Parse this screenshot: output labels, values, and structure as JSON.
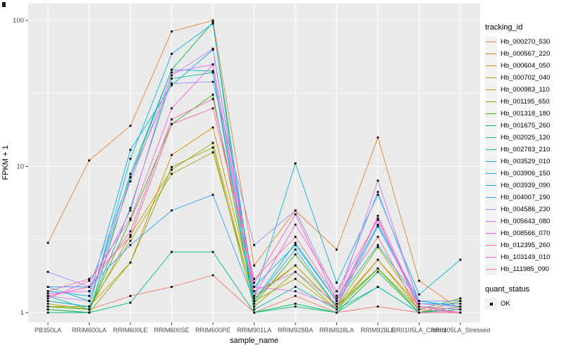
{
  "figure": {
    "panel_background": "#EBEBEB",
    "grid_color": "#FFFFFF",
    "tick_mark_color": "#333333",
    "tick_label_color": "#4D4D4D",
    "point_color": "#000000",
    "legend_key_background": "#F2F2F2"
  },
  "chart_data": {
    "type": "line",
    "xlabel": "sample_name",
    "ylabel": "FPKM + 1",
    "y_scale": "log10",
    "y_ticks": [
      1,
      10,
      100
    ],
    "y_minor_ticks": [
      3.162,
      31.623
    ],
    "ylim": [
      0.86,
      130
    ],
    "grid": true,
    "legend_position": "right",
    "legend_title": "tracking_id",
    "quant_legend": {
      "title": "quant_status",
      "items": [
        {
          "label": "OK"
        }
      ]
    },
    "categories": [
      "PB350LA",
      "RRIM600LA",
      "RRIM600LE",
      "RRIM600SE",
      "RRIM600PE",
      "RRIM901LA",
      "RRIM928BA",
      "RRIM928LA",
      "RRIM928LE",
      "RRII105LA_Control",
      "RRII105LA_Stressed"
    ],
    "series": [
      {
        "name": "Hb_000270_530",
        "color": "#F8766D",
        "values": [
          1.1,
          1.05,
          1.3,
          1.5,
          1.8,
          1.0,
          1.3,
          1.0,
          1.1,
          1.0,
          1.0
        ]
      },
      {
        "name": "Hb_000567_220",
        "color": "#EA8331",
        "values": [
          3.0,
          11.0,
          19.0,
          84.0,
          100.0,
          2.1,
          5.0,
          2.7,
          15.8,
          1.65,
          1.05
        ]
      },
      {
        "name": "Hb_000604_050",
        "color": "#D89000",
        "values": [
          1.2,
          1.1,
          2.2,
          12.0,
          18.5,
          1.3,
          2.1,
          1.1,
          2.3,
          1.1,
          1.0
        ]
      },
      {
        "name": "Hb_000702_040",
        "color": "#C09B00",
        "values": [
          1.15,
          1.05,
          3.4,
          9.5,
          14.5,
          1.2,
          1.7,
          1.05,
          2.3,
          1.05,
          1.0
        ]
      },
      {
        "name": "Hb_000983_110",
        "color": "#A3A500",
        "values": [
          1.1,
          1.1,
          3.1,
          8.9,
          12.5,
          1.25,
          2.1,
          1.1,
          2.8,
          1.1,
          1.05
        ]
      },
      {
        "name": "Hb_001195_650",
        "color": "#7CAE00",
        "values": [
          1.05,
          1.0,
          2.2,
          9.9,
          13.5,
          1.1,
          1.9,
          1.05,
          2.0,
          1.0,
          1.2
        ]
      },
      {
        "name": "Hb_001318_180",
        "color": "#39B600",
        "values": [
          1.1,
          1.05,
          4.3,
          19.5,
          31.0,
          1.15,
          2.5,
          1.1,
          2.0,
          1.05,
          1.25
        ]
      },
      {
        "name": "Hb_001675_260",
        "color": "#00BB4E",
        "values": [
          1.05,
          1.0,
          8.4,
          46.0,
          97.0,
          1.0,
          1.15,
          1.0,
          1.9,
          1.0,
          1.1
        ]
      },
      {
        "name": "Hb_002025_120",
        "color": "#00BF7D",
        "values": [
          1.0,
          1.0,
          1.17,
          2.6,
          2.6,
          1.0,
          1.1,
          1.0,
          1.5,
          1.0,
          1.05
        ]
      },
      {
        "name": "Hb_002783_210",
        "color": "#00C1A3",
        "values": [
          1.3,
          1.05,
          5.2,
          40.0,
          44.0,
          1.05,
          1.5,
          1.05,
          1.5,
          1.0,
          1.0
        ]
      },
      {
        "name": "Hb_003529_010",
        "color": "#00BFC4",
        "values": [
          1.5,
          1.2,
          8.9,
          46.0,
          45.0,
          1.2,
          3.0,
          1.2,
          2.9,
          1.2,
          1.1
        ]
      },
      {
        "name": "Hb_003906_150",
        "color": "#00BAE0",
        "values": [
          1.2,
          1.1,
          11.3,
          59.0,
          95.0,
          1.3,
          10.5,
          1.6,
          6.4,
          1.33,
          2.3
        ]
      },
      {
        "name": "Hb_003939_090",
        "color": "#00B0F6",
        "values": [
          1.4,
          1.3,
          13.0,
          36.0,
          63.0,
          1.5,
          2.9,
          1.2,
          4.0,
          1.2,
          1.1
        ]
      },
      {
        "name": "Hb_004007_190",
        "color": "#35A2FF",
        "values": [
          1.5,
          1.5,
          2.9,
          5.0,
          6.4,
          1.2,
          2.7,
          1.1,
          3.9,
          1.15,
          1.15
        ]
      },
      {
        "name": "Hb_004586_230",
        "color": "#9590FF",
        "values": [
          1.9,
          1.5,
          8.5,
          37.0,
          38.0,
          2.9,
          5.0,
          1.3,
          6.7,
          1.2,
          1.2
        ]
      },
      {
        "name": "Hb_005643_080",
        "color": "#C77CFF",
        "values": [
          1.3,
          1.2,
          7.9,
          42.0,
          64.0,
          1.4,
          1.9,
          1.15,
          8.0,
          1.15,
          1.1
        ]
      },
      {
        "name": "Hb_008566_070",
        "color": "#E76BF3",
        "values": [
          1.35,
          1.4,
          5.0,
          44.0,
          50.0,
          1.5,
          1.4,
          1.1,
          4.6,
          1.1,
          1.05
        ]
      },
      {
        "name": "Hb_012395_260",
        "color": "#FA62DB",
        "values": [
          1.25,
          1.65,
          4.4,
          25.0,
          50.0,
          1.3,
          4.0,
          1.4,
          4.3,
          1.1,
          1.0
        ]
      },
      {
        "name": "Hb_103149_010",
        "color": "#FF62BC",
        "values": [
          1.3,
          1.5,
          3.6,
          21.0,
          29.0,
          1.6,
          4.7,
          1.2,
          4.4,
          1.05,
          1.0
        ]
      },
      {
        "name": "Hb_111985_090",
        "color": "#FF6A98",
        "values": [
          1.4,
          1.7,
          3.3,
          19.5,
          25.0,
          1.7,
          3.3,
          1.25,
          3.3,
          1.0,
          1.0
        ]
      }
    ]
  }
}
